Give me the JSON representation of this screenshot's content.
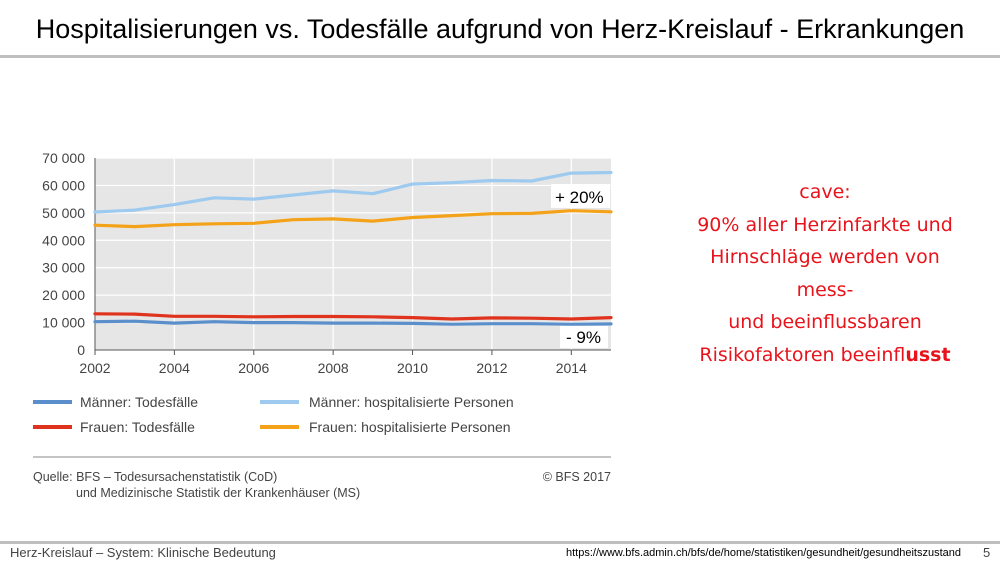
{
  "slide": {
    "title": "Hospitalisierungen vs. Todesfälle aufgrund von Herz-Kreislauf - Erkrankungen",
    "cave_lines": [
      "cave:",
      "90% aller Herzinfarkte und",
      "Hirnschläge werden von mess-",
      "und beeinflussbaren"
    ],
    "cave_last_prefix": "Risikofaktoren beeinfl",
    "cave_last_bold": "usst",
    "footer_left": "Herz-Kreislauf – System:  Klinische Bedeutung",
    "footer_url": "https://www.bfs.admin.ch/bfs/de/home/statistiken/gesundheit/gesundheitszustand",
    "page_number": "5",
    "accent_color": "#e8131b"
  },
  "chart_data": {
    "type": "line",
    "x": [
      2002,
      2003,
      2004,
      2005,
      2006,
      2007,
      2008,
      2009,
      2010,
      2011,
      2012,
      2013,
      2014,
      2015
    ],
    "series": [
      {
        "name": "Männer: Todesfälle",
        "color": "#5b8fcb",
        "values": [
          10300,
          10500,
          9800,
          10300,
          10000,
          10000,
          9800,
          9800,
          9700,
          9400,
          9600,
          9600,
          9400,
          9500
        ]
      },
      {
        "name": "Männer: hospitalisierte Personen",
        "color": "#9dcaee",
        "values": [
          50300,
          51000,
          53000,
          55500,
          55000,
          56500,
          58000,
          57000,
          60500,
          61000,
          61800,
          61600,
          64500,
          64700
        ]
      },
      {
        "name": "Frauen: Todesfälle",
        "color": "#e0331e",
        "values": [
          13200,
          13100,
          12300,
          12300,
          12100,
          12200,
          12200,
          12100,
          11800,
          11300,
          11700,
          11600,
          11300,
          11800
        ]
      },
      {
        "name": "Frauen: hospitalisierte Personen",
        "color": "#f3a21a",
        "values": [
          45500,
          45000,
          45700,
          46000,
          46200,
          47500,
          47800,
          47000,
          48300,
          49000,
          49700,
          49800,
          50800,
          50400
        ]
      }
    ],
    "ylim": [
      0,
      70000
    ],
    "xlim": [
      2002,
      2015
    ],
    "y_ticks": [
      "0",
      "10 000",
      "20 000",
      "30 000",
      "40 000",
      "50 000",
      "60 000",
      "70 000"
    ],
    "y_tick_values": [
      0,
      10000,
      20000,
      30000,
      40000,
      50000,
      60000,
      70000
    ],
    "x_ticks": [
      "2002",
      "2004",
      "2006",
      "2008",
      "2010",
      "2012",
      "2014"
    ],
    "x_tick_values": [
      2002,
      2004,
      2006,
      2008,
      2010,
      2012,
      2014
    ],
    "annotations": [
      "+ 20%",
      "- 9%"
    ],
    "legend": [
      "Männer: Todesfälle",
      "Männer: hospitalisierte Personen",
      "Frauen: Todesfälle",
      "Frauen: hospitalisierte Personen"
    ],
    "source_line1": "Quelle: BFS – Todesursachenstatistik (CoD)",
    "source_line2": "und Medizinische Statistik der Krankenhäuser (MS)",
    "copyright": "© BFS 2017",
    "grid": true,
    "legend_position": "bottom"
  }
}
